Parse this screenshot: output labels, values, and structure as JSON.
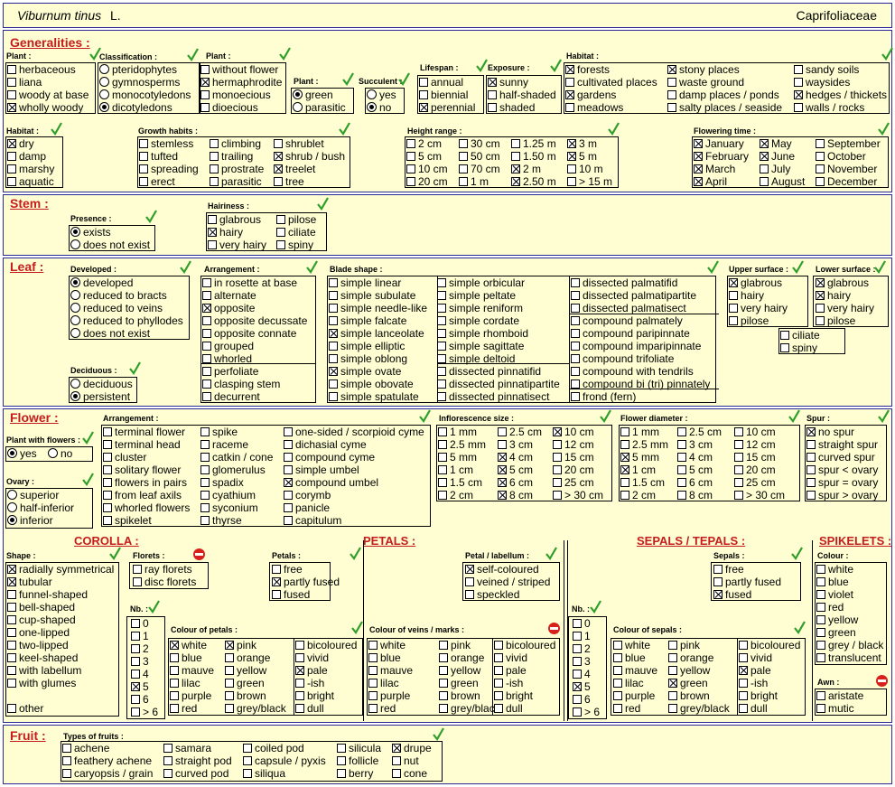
{
  "header": {
    "species": "Viburnum tinus",
    "author": "L.",
    "family": "Caprifoliaceae"
  },
  "sections": [
    {
      "id": "generalities",
      "title": "Generalities :"
    },
    {
      "id": "stem",
      "title": "Stem :"
    },
    {
      "id": "leaf",
      "title": "Leaf :"
    },
    {
      "id": "flower",
      "title": "Flower :"
    },
    {
      "id": "fruit",
      "title": "Fruit :"
    }
  ],
  "subtitles": [
    {
      "id": "corolla",
      "title": "COROLLA :"
    },
    {
      "id": "petals",
      "title": "PETALS :"
    },
    {
      "id": "sepals",
      "title": "SEPALS / TEPALS :"
    },
    {
      "id": "spikelets",
      "title": "SPIKELETS :"
    }
  ],
  "groups": [
    {
      "id": "plant-type",
      "label": "Plant :",
      "mark": "check",
      "type": "check",
      "cols": [
        [
          "herbaceous",
          "liana",
          "woody at base",
          "wholly woody"
        ]
      ],
      "checked": [
        "wholly woody"
      ]
    },
    {
      "id": "classification",
      "label": "Classification :",
      "mark": "check",
      "type": "radio",
      "cols": [
        [
          "pteridophytes",
          "gymnosperms",
          "monocotyledons",
          "dicotyledons"
        ]
      ],
      "checked": [
        "dicotyledons"
      ]
    },
    {
      "id": "plant-flower",
      "label": "Plant :",
      "mark": "check",
      "type": "check",
      "cols": [
        [
          "without flower",
          "hermaphrodite",
          "monoecious",
          "dioecious"
        ]
      ],
      "checked": [
        "hermaphrodite"
      ]
    },
    {
      "id": "plant-colour",
      "label": "Plant :",
      "mark": "check",
      "type": "radio",
      "cols": [
        [
          "green",
          "parasitic"
        ]
      ],
      "checked": [
        "green"
      ]
    },
    {
      "id": "succulent",
      "label": "Succulent :",
      "mark": "check",
      "type": "radio",
      "cols": [
        [
          "yes",
          "no"
        ]
      ],
      "checked": [
        "no"
      ]
    },
    {
      "id": "lifespan",
      "label": "Lifespan :",
      "mark": "check",
      "type": "check",
      "cols": [
        [
          "annual",
          "biennial",
          "perennial"
        ]
      ],
      "checked": [
        "perennial"
      ]
    },
    {
      "id": "exposure",
      "label": "Exposure :",
      "mark": "check",
      "type": "check",
      "cols": [
        [
          "sunny",
          "half-shaded",
          "shaded"
        ]
      ],
      "checked": [
        "sunny"
      ]
    },
    {
      "id": "habitat-places",
      "label": "Habitat :",
      "mark": "check",
      "type": "check",
      "cols": [
        [
          "forests",
          "cultivated places",
          "gardens",
          "meadows"
        ],
        [
          "stony places",
          "waste ground",
          "damp places / ponds",
          "salty places / seaside"
        ],
        [
          "sandy soils",
          "waysides",
          "hedges / thickets",
          "walls / rocks"
        ]
      ],
      "checked": [
        "forests",
        "gardens",
        "stony places",
        "hedges / thickets"
      ]
    },
    {
      "id": "habitat-moisture",
      "label": "Habitat :",
      "mark": "check",
      "type": "check",
      "cols": [
        [
          "dry",
          "damp",
          "marshy",
          "aquatic"
        ]
      ],
      "checked": [
        "dry"
      ]
    },
    {
      "id": "growth-habits",
      "label": "Growth habits :",
      "mark": "check",
      "type": "check",
      "cols": [
        [
          "stemless",
          "tufted",
          "spreading",
          "erect"
        ],
        [
          "climbing",
          "trailing",
          "prostrate",
          "parasitic"
        ],
        [
          "shrublet",
          "shrub / bush",
          "treelet",
          "tree"
        ]
      ],
      "checked": [
        "shrub / bush",
        "treelet"
      ]
    },
    {
      "id": "height-range",
      "label": "Height range :",
      "mark": "check",
      "type": "check",
      "cols": [
        [
          "2 cm",
          "5 cm",
          "10 cm",
          "20 cm"
        ],
        [
          "30 cm",
          "50 cm",
          "70 cm",
          "1 m"
        ],
        [
          "1.25 m",
          "1.50 m",
          "2 m",
          "2.50 m"
        ],
        [
          "3 m",
          "5 m",
          "10 m",
          "> 15 m"
        ]
      ],
      "checked": [
        "2 m",
        "2.50 m",
        "3 m",
        "5 m"
      ]
    },
    {
      "id": "flowering-time",
      "label": "Flowering time :",
      "mark": "check",
      "type": "check",
      "cols": [
        [
          "January",
          "February",
          "March",
          "April"
        ],
        [
          "May",
          "June",
          "July",
          "August"
        ],
        [
          "September",
          "October",
          "November",
          "December"
        ]
      ],
      "checked": [
        "January",
        "February",
        "March",
        "April",
        "May",
        "June"
      ]
    },
    {
      "id": "stem-presence",
      "label": "Presence :",
      "mark": "check",
      "type": "radio",
      "cols": [
        [
          "exists",
          "does not exist"
        ]
      ],
      "checked": [
        "exists"
      ]
    },
    {
      "id": "stem-hairiness",
      "label": "Hairiness :",
      "mark": "check",
      "type": "check",
      "cols": [
        [
          "glabrous",
          "hairy",
          "very hairy"
        ],
        [
          "pilose",
          "ciliate",
          "spiny"
        ]
      ],
      "checked": [
        "hairy"
      ]
    },
    {
      "id": "leaf-developed",
      "label": "Developed :",
      "mark": "check",
      "type": "radio",
      "cols": [
        [
          "developed",
          "reduced to bracts",
          "reduced to veins",
          "reduced to phyllodes",
          "does not exist"
        ]
      ],
      "checked": [
        "developed"
      ]
    },
    {
      "id": "leaf-deciduous",
      "label": "Deciduous :",
      "mark": "check",
      "type": "radio",
      "cols": [
        [
          "deciduous",
          "persistent"
        ]
      ],
      "checked": [
        "persistent"
      ]
    },
    {
      "id": "leaf-arrangement",
      "label": "Arrangement :",
      "mark": "check",
      "type": "check",
      "cols": [
        [
          "in rosette at base",
          "alternate",
          "opposite",
          "opposite decussate",
          "opposite connate",
          "grouped",
          "whorled",
          "perfoliate",
          "clasping stem",
          "decurrent"
        ]
      ],
      "checked": [
        "opposite"
      ]
    },
    {
      "id": "blade-shape",
      "label": "Blade shape :",
      "mark": "check",
      "type": "check",
      "cols": [
        [
          "simple linear",
          "simple subulate",
          "simple needle-like",
          "simple falcate",
          "simple lanceolate",
          "simple elliptic",
          "simple oblong",
          "simple ovate",
          "simple obovate",
          "simple spatulate"
        ],
        [
          "simple orbicular",
          "simple peltate",
          "simple reniform",
          "simple cordate",
          "simple rhomboid",
          "simple sagittate",
          "simple deltoid",
          "dissected pinnatifid",
          "dissected pinnatipartite",
          "dissected pinnatisect"
        ],
        [
          "dissected palmatifid",
          "dissected palmatipartite",
          "dissected palmatisect",
          "compound palmately",
          "compound paripinnate",
          "compound imparipinnate",
          "compound trifoliate",
          "compound with tendrils",
          "compound bi (tri) pinnately",
          "frond  (fern)"
        ]
      ],
      "checked": [
        "simple lanceolate",
        "simple ovate"
      ]
    },
    {
      "id": "upper-surface",
      "label": "Upper surface :",
      "mark": "check",
      "type": "check",
      "cols": [
        [
          "glabrous",
          "hairy",
          "very hairy",
          "pilose"
        ]
      ],
      "checked": [
        "glabrous"
      ]
    },
    {
      "id": "lower-surface",
      "label": "Lower surface :",
      "mark": "check",
      "type": "check",
      "cols": [
        [
          "glabrous",
          "hairy",
          "very hairy",
          "pilose"
        ]
      ],
      "checked": [
        "glabrous",
        "hairy"
      ]
    },
    {
      "id": "leaf-extra",
      "label": "",
      "mark": "none",
      "type": "check",
      "cols": [
        [
          "ciliate",
          "spiny"
        ]
      ],
      "checked": []
    },
    {
      "id": "plant-with-flowers",
      "label": "Plant with flowers :",
      "mark": "check",
      "type": "radio",
      "cols": [
        [
          "yes"
        ],
        [
          "no"
        ]
      ],
      "checked": [
        "yes"
      ]
    },
    {
      "id": "ovary",
      "label": "Ovary :",
      "mark": "check",
      "type": "radio",
      "cols": [
        [
          "superior",
          "half-inferior",
          "inferior"
        ]
      ],
      "checked": [
        "inferior"
      ]
    },
    {
      "id": "flower-arrangement",
      "label": "Arrangement :",
      "mark": "check",
      "type": "check",
      "cols": [
        [
          "terminal flower",
          "terminal head",
          "cluster",
          "solitary flower",
          "flowers in pairs",
          "from leaf axils",
          "whorled flowers",
          "spikelet"
        ],
        [
          "spike",
          "raceme",
          "catkin / cone",
          "glomerulus",
          "spadix",
          "cyathium",
          "syconium",
          "thyrse"
        ],
        [
          "one-sided / scorpioid cyme",
          "dichasial cyme",
          "compound cyme",
          "simple umbel",
          "compound umbel",
          "corymb",
          "panicle",
          "capitulum"
        ]
      ],
      "checked": [
        "compound umbel"
      ]
    },
    {
      "id": "inflorescence-size",
      "label": "Inflorescence size :",
      "mark": "check",
      "type": "check",
      "cols": [
        [
          "1 mm",
          "2.5 mm",
          "5 mm",
          "1 cm",
          "1.5 cm",
          "2 cm"
        ],
        [
          "2.5 cm",
          "3 cm",
          "4 cm",
          "5 cm",
          "6 cm",
          "8 cm"
        ],
        [
          "10 cm",
          "12 cm",
          "15 cm",
          "20 cm",
          "25 cm",
          "> 30 cm"
        ]
      ],
      "checked": [
        "4 cm",
        "5 cm",
        "6 cm",
        "8 cm",
        "10 cm"
      ]
    },
    {
      "id": "flower-diameter",
      "label": "Flower diameter :",
      "mark": "check",
      "type": "check",
      "cols": [
        [
          "1 mm",
          "2.5 mm",
          "5 mm",
          "1 cm",
          "1.5 cm",
          "2 cm"
        ],
        [
          "2.5 cm",
          "3 cm",
          "4 cm",
          "5 cm",
          "6 cm",
          "8 cm"
        ],
        [
          "10 cm",
          "12 cm",
          "15 cm",
          "20 cm",
          "25 cm",
          "> 30 cm"
        ]
      ],
      "checked": [
        "5 mm",
        "1 cm"
      ]
    },
    {
      "id": "spur",
      "label": "Spur :",
      "mark": "check",
      "type": "check",
      "cols": [
        [
          "no spur",
          "straight spur",
          "curved spur",
          "spur < ovary",
          "spur = ovary",
          "spur > ovary"
        ]
      ],
      "checked": [
        "no spur"
      ]
    },
    {
      "id": "corolla-shape",
      "label": "Shape :",
      "mark": "check",
      "type": "check",
      "cols": [
        [
          "radially symmetrical",
          "tubular",
          "funnel-shaped",
          "bell-shaped",
          "cup-shaped",
          "one-lipped",
          "two-lipped",
          "keel-shaped",
          "with labellum",
          "with glumes",
          "",
          "other"
        ]
      ],
      "checked": [
        "radially symmetrical",
        "tubular"
      ]
    },
    {
      "id": "florets",
      "label": "Florets :",
      "mark": "no",
      "type": "check",
      "cols": [
        [
          "ray florets",
          "disc florets"
        ]
      ],
      "checked": []
    },
    {
      "id": "petal-number",
      "label": "Nb. :",
      "mark": "check",
      "type": "check",
      "cols": [
        [
          "0",
          "1",
          "2",
          "3",
          "4",
          "5",
          "6",
          "> 6"
        ]
      ],
      "checked": [
        "5"
      ]
    },
    {
      "id": "petals-fusion",
      "label": "Petals :",
      "mark": "check",
      "type": "check",
      "cols": [
        [
          "free",
          "partly fused",
          "fused"
        ]
      ],
      "checked": [
        "partly fused"
      ]
    },
    {
      "id": "petal-labellum",
      "label": "Petal / labellum :",
      "mark": "check",
      "type": "check",
      "cols": [
        [
          "self-coloured",
          "veined / striped",
          "speckled"
        ]
      ],
      "checked": [
        "self-coloured"
      ]
    },
    {
      "id": "colour-of-petals",
      "label": "Colour of petals :",
      "mark": "check",
      "type": "check",
      "cols": [
        [
          "white",
          "blue",
          "mauve",
          "lilac",
          "purple",
          "red"
        ],
        [
          "pink",
          "orange",
          "yellow",
          "green",
          "brown",
          "grey/black"
        ],
        [
          "bicoloured",
          "vivid",
          "pale",
          "-ish",
          "bright",
          "dull"
        ]
      ],
      "checked": [
        "white",
        "pink",
        "pale"
      ]
    },
    {
      "id": "colour-of-veins",
      "label": "Colour of veins / marks :",
      "mark": "no",
      "type": "check",
      "cols": [
        [
          "white",
          "blue",
          "mauve",
          "lilac",
          "purple",
          "red"
        ],
        [
          "pink",
          "orange",
          "yellow",
          "green",
          "brown",
          "grey/black"
        ],
        [
          "bicoloured",
          "vivid",
          "pale",
          "-ish",
          "bright",
          "dull"
        ]
      ],
      "checked": []
    },
    {
      "id": "sepal-number",
      "label": "Nb. :",
      "mark": "check",
      "type": "check",
      "cols": [
        [
          "0",
          "1",
          "2",
          "3",
          "4",
          "5",
          "6",
          "> 6"
        ]
      ],
      "checked": [
        "5"
      ]
    },
    {
      "id": "sepals-fusion",
      "label": "Sepals :",
      "mark": "check",
      "type": "check",
      "cols": [
        [
          "free",
          "partly fused",
          "fused"
        ]
      ],
      "checked": [
        "fused"
      ]
    },
    {
      "id": "colour-of-sepals",
      "label": "Colour of sepals :",
      "mark": "check",
      "type": "check",
      "cols": [
        [
          "white",
          "blue",
          "mauve",
          "lilac",
          "purple",
          "red"
        ],
        [
          "pink",
          "orange",
          "yellow",
          "green",
          "brown",
          "grey/black"
        ],
        [
          "bicoloured",
          "vivid",
          "pale",
          "-ish",
          "bright",
          "dull"
        ]
      ],
      "checked": [
        "green",
        "pale"
      ]
    },
    {
      "id": "spikelet-colour",
      "label": "Colour :",
      "mark": "check",
      "type": "check",
      "cols": [
        [
          "white",
          "blue",
          "violet",
          "red",
          "yellow",
          "green",
          "grey / black",
          "translucent"
        ]
      ],
      "checked": []
    },
    {
      "id": "awn",
      "label": "Awn :",
      "mark": "no",
      "type": "check",
      "cols": [
        [
          "aristate",
          "mutic"
        ]
      ],
      "checked": []
    },
    {
      "id": "types-of-fruits",
      "label": "Types of fruits :",
      "mark": "check",
      "type": "check",
      "cols": [
        [
          "achene",
          "feathery achene",
          "caryopsis / grain"
        ],
        [
          "samara",
          "straight pod",
          "curved pod"
        ],
        [
          "coiled pod",
          "capsule / pyxis",
          "siliqua"
        ],
        [
          "silicula",
          "follicle",
          "berry"
        ],
        [
          "drupe",
          "nut",
          "cone"
        ]
      ],
      "checked": [
        "drupe"
      ]
    }
  ],
  "colors": {
    "background": "#fefed2",
    "section_border": "#2a2a96",
    "section_title": "#c51d1d",
    "check_mark": "#2f9e2a",
    "not_applicable": "#d8211b"
  }
}
